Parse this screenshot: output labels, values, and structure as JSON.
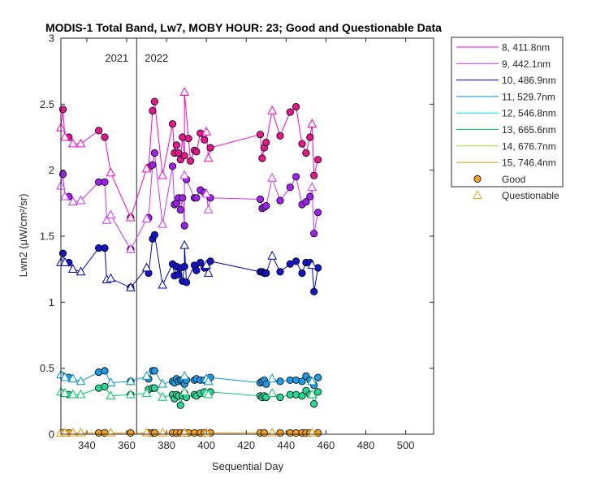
{
  "chart_data": {
    "type": "line",
    "title": "MODIS-1 Total Band, Lw7, MOBY HOUR: 23;  Good and Questionable Data",
    "xlabel": "Sequential Day",
    "ylabel": "Lwn2 (μW/cm²/sr)",
    "xlim": [
      327,
      514
    ],
    "ylim": [
      0,
      3
    ],
    "xticks": [
      340,
      360,
      380,
      400,
      420,
      440,
      460,
      480,
      500
    ],
    "yticks": [
      0,
      0.5,
      1,
      1.5,
      2,
      2.5,
      3
    ],
    "grid": false,
    "legend_position": "outside-top-right",
    "year_divider": {
      "x": 365,
      "left_label": "2021",
      "right_label": "2022"
    },
    "series": [
      {
        "name": "8, 411.8nm",
        "color": "#ff00cc",
        "marker_fill": "#e6168c",
        "good": [
          [
            328,
            2.46
          ],
          [
            331,
            2.25
          ],
          [
            346,
            2.3
          ],
          [
            349,
            2.25
          ],
          [
            362,
            1.64
          ],
          [
            371,
            2.02
          ],
          [
            373,
            2.45
          ],
          [
            374,
            2.52
          ],
          [
            383,
            2.35
          ],
          [
            384,
            2.13
          ],
          [
            385,
            2.19
          ],
          [
            386,
            2.13
          ],
          [
            387,
            2.08
          ],
          [
            388,
            2.25
          ],
          [
            389,
            2.11
          ],
          [
            391,
            2.24
          ],
          [
            392,
            2.07
          ],
          [
            394,
            2.15
          ],
          [
            395,
            2.14
          ],
          [
            397,
            2.28
          ],
          [
            399,
            2.23
          ],
          [
            402,
            2.17
          ],
          [
            427,
            2.27
          ],
          [
            428,
            2.09
          ],
          [
            429,
            2.17
          ],
          [
            430,
            2.21
          ],
          [
            437,
            2.26
          ],
          [
            442,
            2.44
          ],
          [
            445,
            2.48
          ],
          [
            448,
            2.2
          ],
          [
            450,
            2.13
          ],
          [
            452,
            2.25
          ],
          [
            454,
            1.96
          ],
          [
            456,
            2.08
          ]
        ],
        "questionable": [
          [
            327,
            2.32
          ],
          [
            329,
            2.25
          ],
          [
            333,
            2.2
          ],
          [
            337,
            2.2
          ],
          [
            352,
            1.98
          ],
          [
            362,
            1.64
          ],
          [
            370,
            2.01
          ],
          [
            378,
            1.96
          ],
          [
            389,
            2.59
          ],
          [
            400,
            2.29
          ],
          [
            401,
            2.09
          ],
          [
            433,
            2.45
          ],
          [
            453,
            2.35
          ]
        ]
      },
      {
        "name": "9, 442.1nm",
        "color": "#cc33ff",
        "marker_fill": "#a020f0",
        "good": [
          [
            328,
            1.97
          ],
          [
            331,
            1.8
          ],
          [
            346,
            1.91
          ],
          [
            349,
            1.91
          ],
          [
            362,
            1.4
          ],
          [
            371,
            1.64
          ],
          [
            373,
            2.04
          ],
          [
            374,
            2.13
          ],
          [
            383,
            2.03
          ],
          [
            384,
            1.74
          ],
          [
            385,
            1.75
          ],
          [
            386,
            1.79
          ],
          [
            387,
            1.7
          ],
          [
            388,
            1.79
          ],
          [
            389,
            1.58
          ],
          [
            390,
            1.93
          ],
          [
            394,
            1.79
          ],
          [
            395,
            1.79
          ],
          [
            397,
            1.85
          ],
          [
            399,
            1.83
          ],
          [
            402,
            1.79
          ],
          [
            427,
            1.78
          ],
          [
            428,
            1.71
          ],
          [
            429,
            1.72
          ],
          [
            430,
            1.73
          ],
          [
            437,
            1.77
          ],
          [
            442,
            1.87
          ],
          [
            445,
            1.95
          ],
          [
            448,
            1.74
          ],
          [
            450,
            1.76
          ],
          [
            452,
            1.8
          ],
          [
            454,
            1.52
          ],
          [
            456,
            1.68
          ]
        ],
        "questionable": [
          [
            327,
            1.88
          ],
          [
            329,
            1.8
          ],
          [
            333,
            1.76
          ],
          [
            337,
            1.77
          ],
          [
            350,
            1.62
          ],
          [
            352,
            1.66
          ],
          [
            362,
            1.4
          ],
          [
            370,
            1.63
          ],
          [
            378,
            1.59
          ],
          [
            389,
            1.96
          ],
          [
            400,
            1.82
          ],
          [
            401,
            1.7
          ],
          [
            433,
            1.94
          ],
          [
            453,
            1.87
          ]
        ]
      },
      {
        "name": "10, 486.9nm",
        "color": "#0000b4",
        "marker_fill": "#1414c8",
        "good": [
          [
            328,
            1.37
          ],
          [
            331,
            1.3
          ],
          [
            346,
            1.41
          ],
          [
            349,
            1.41
          ],
          [
            362,
            1.11
          ],
          [
            371,
            1.22
          ],
          [
            373,
            1.48
          ],
          [
            374,
            1.51
          ],
          [
            383,
            1.29
          ],
          [
            384,
            1.2
          ],
          [
            385,
            1.27
          ],
          [
            386,
            1.21
          ],
          [
            387,
            1.26
          ],
          [
            388,
            1.16
          ],
          [
            389,
            1.27
          ],
          [
            390,
            1.15
          ],
          [
            394,
            1.28
          ],
          [
            395,
            1.24
          ],
          [
            397,
            1.3
          ],
          [
            399,
            1.26
          ],
          [
            402,
            1.31
          ],
          [
            427,
            1.23
          ],
          [
            428,
            1.23
          ],
          [
            429,
            1.22
          ],
          [
            430,
            1.22
          ],
          [
            437,
            1.23
          ],
          [
            442,
            1.29
          ],
          [
            445,
            1.31
          ],
          [
            448,
            1.22
          ],
          [
            450,
            1.3
          ],
          [
            452,
            1.3
          ],
          [
            454,
            1.08
          ],
          [
            456,
            1.26
          ]
        ],
        "questionable": [
          [
            327,
            1.3
          ],
          [
            329,
            1.3
          ],
          [
            333,
            1.25
          ],
          [
            337,
            1.23
          ],
          [
            350,
            1.17
          ],
          [
            352,
            1.18
          ],
          [
            362,
            1.11
          ],
          [
            370,
            1.26
          ],
          [
            378,
            1.13
          ],
          [
            389,
            1.43
          ],
          [
            400,
            1.28
          ],
          [
            401,
            1.22
          ],
          [
            433,
            1.35
          ],
          [
            453,
            1.28
          ]
        ]
      },
      {
        "name": "11, 529.7nm",
        "color": "#0096c8",
        "marker_fill": "#1e9be6",
        "good": [
          [
            328,
            0.44
          ],
          [
            331,
            0.43
          ],
          [
            346,
            0.47
          ],
          [
            349,
            0.48
          ],
          [
            362,
            0.4
          ],
          [
            371,
            0.42
          ],
          [
            373,
            0.48
          ],
          [
            374,
            0.48
          ],
          [
            383,
            0.4
          ],
          [
            384,
            0.39
          ],
          [
            385,
            0.42
          ],
          [
            386,
            0.4
          ],
          [
            387,
            0.41
          ],
          [
            388,
            0.41
          ],
          [
            389,
            0.38
          ],
          [
            390,
            0.41
          ],
          [
            394,
            0.41
          ],
          [
            395,
            0.42
          ],
          [
            397,
            0.41
          ],
          [
            399,
            0.41
          ],
          [
            402,
            0.43
          ],
          [
            427,
            0.39
          ],
          [
            428,
            0.4
          ],
          [
            429,
            0.41
          ],
          [
            430,
            0.38
          ],
          [
            437,
            0.4
          ],
          [
            442,
            0.41
          ],
          [
            445,
            0.41
          ],
          [
            448,
            0.4
          ],
          [
            450,
            0.44
          ],
          [
            452,
            0.41
          ],
          [
            454,
            0.37
          ],
          [
            456,
            0.43
          ]
        ],
        "questionable": [
          [
            327,
            0.45
          ],
          [
            329,
            0.43
          ],
          [
            333,
            0.42
          ],
          [
            337,
            0.4
          ],
          [
            352,
            0.39
          ],
          [
            362,
            0.4
          ],
          [
            370,
            0.44
          ],
          [
            378,
            0.38
          ],
          [
            389,
            0.44
          ],
          [
            400,
            0.42
          ],
          [
            401,
            0.4
          ],
          [
            433,
            0.42
          ],
          [
            453,
            0.4
          ]
        ]
      },
      {
        "name": "12, 546.8nm",
        "color": "#00e6e6",
        "marker_fill": "#00c8c8",
        "good": [],
        "questionable": []
      },
      {
        "name": "13, 665.6nm",
        "color": "#00c864",
        "marker_fill": "#28d796",
        "good": [
          [
            328,
            0.31
          ],
          [
            331,
            0.3
          ],
          [
            346,
            0.35
          ],
          [
            349,
            0.36
          ],
          [
            362,
            0.3
          ],
          [
            371,
            0.34
          ],
          [
            373,
            0.35
          ],
          [
            374,
            0.35
          ],
          [
            383,
            0.3
          ],
          [
            384,
            0.27
          ],
          [
            385,
            0.3
          ],
          [
            386,
            0.29
          ],
          [
            387,
            0.22
          ],
          [
            388,
            0.29
          ],
          [
            389,
            0.31
          ],
          [
            390,
            0.28
          ],
          [
            394,
            0.3
          ],
          [
            395,
            0.29
          ],
          [
            397,
            0.31
          ],
          [
            399,
            0.32
          ],
          [
            402,
            0.32
          ],
          [
            427,
            0.29
          ],
          [
            428,
            0.28
          ],
          [
            429,
            0.29
          ],
          [
            430,
            0.28
          ],
          [
            437,
            0.28
          ],
          [
            442,
            0.3
          ],
          [
            445,
            0.3
          ],
          [
            448,
            0.29
          ],
          [
            450,
            0.33
          ],
          [
            452,
            0.3
          ],
          [
            454,
            0.23
          ],
          [
            456,
            0.32
          ]
        ],
        "questionable": [
          [
            327,
            0.32
          ],
          [
            329,
            0.31
          ],
          [
            333,
            0.3
          ],
          [
            337,
            0.3
          ],
          [
            352,
            0.29
          ],
          [
            362,
            0.3
          ],
          [
            370,
            0.31
          ],
          [
            378,
            0.28
          ],
          [
            389,
            0.32
          ],
          [
            400,
            0.31
          ],
          [
            401,
            0.3
          ],
          [
            433,
            0.31
          ],
          [
            453,
            0.3
          ]
        ]
      },
      {
        "name": "14, 676.7nm",
        "color": "#a0e632",
        "marker_fill": "#a0e632",
        "good": [],
        "questionable": []
      },
      {
        "name": "15, 746.4nm",
        "color": "#e69600",
        "marker_fill": "#f0a020",
        "good": [
          [
            328,
            0.01
          ],
          [
            331,
            0.01
          ],
          [
            346,
            0.01
          ],
          [
            349,
            0.01
          ],
          [
            362,
            0.01
          ],
          [
            371,
            0.01
          ],
          [
            373,
            0.01
          ],
          [
            374,
            0.01
          ],
          [
            383,
            0.01
          ],
          [
            385,
            0.01
          ],
          [
            387,
            0.01
          ],
          [
            389,
            0.01
          ],
          [
            391,
            0.01
          ],
          [
            394,
            0.01
          ],
          [
            397,
            0.01
          ],
          [
            399,
            0.01
          ],
          [
            402,
            0.01
          ],
          [
            427,
            0.01
          ],
          [
            429,
            0.01
          ],
          [
            437,
            0.01
          ],
          [
            442,
            0.01
          ],
          [
            445,
            0.01
          ],
          [
            448,
            0.01
          ],
          [
            450,
            0.01
          ],
          [
            452,
            0.01
          ],
          [
            456,
            0.01
          ]
        ],
        "questionable": [
          [
            327,
            0.01
          ],
          [
            329,
            0.01
          ],
          [
            333,
            0.01
          ],
          [
            337,
            0.01
          ],
          [
            352,
            0.01
          ],
          [
            370,
            0.01
          ],
          [
            378,
            0.01
          ],
          [
            389,
            0.01
          ],
          [
            400,
            0.01
          ],
          [
            433,
            0.01
          ],
          [
            453,
            0.01
          ]
        ]
      }
    ],
    "marker_legend": {
      "good": "Good",
      "questionable": "Questionable",
      "color": "#f0a020"
    }
  }
}
